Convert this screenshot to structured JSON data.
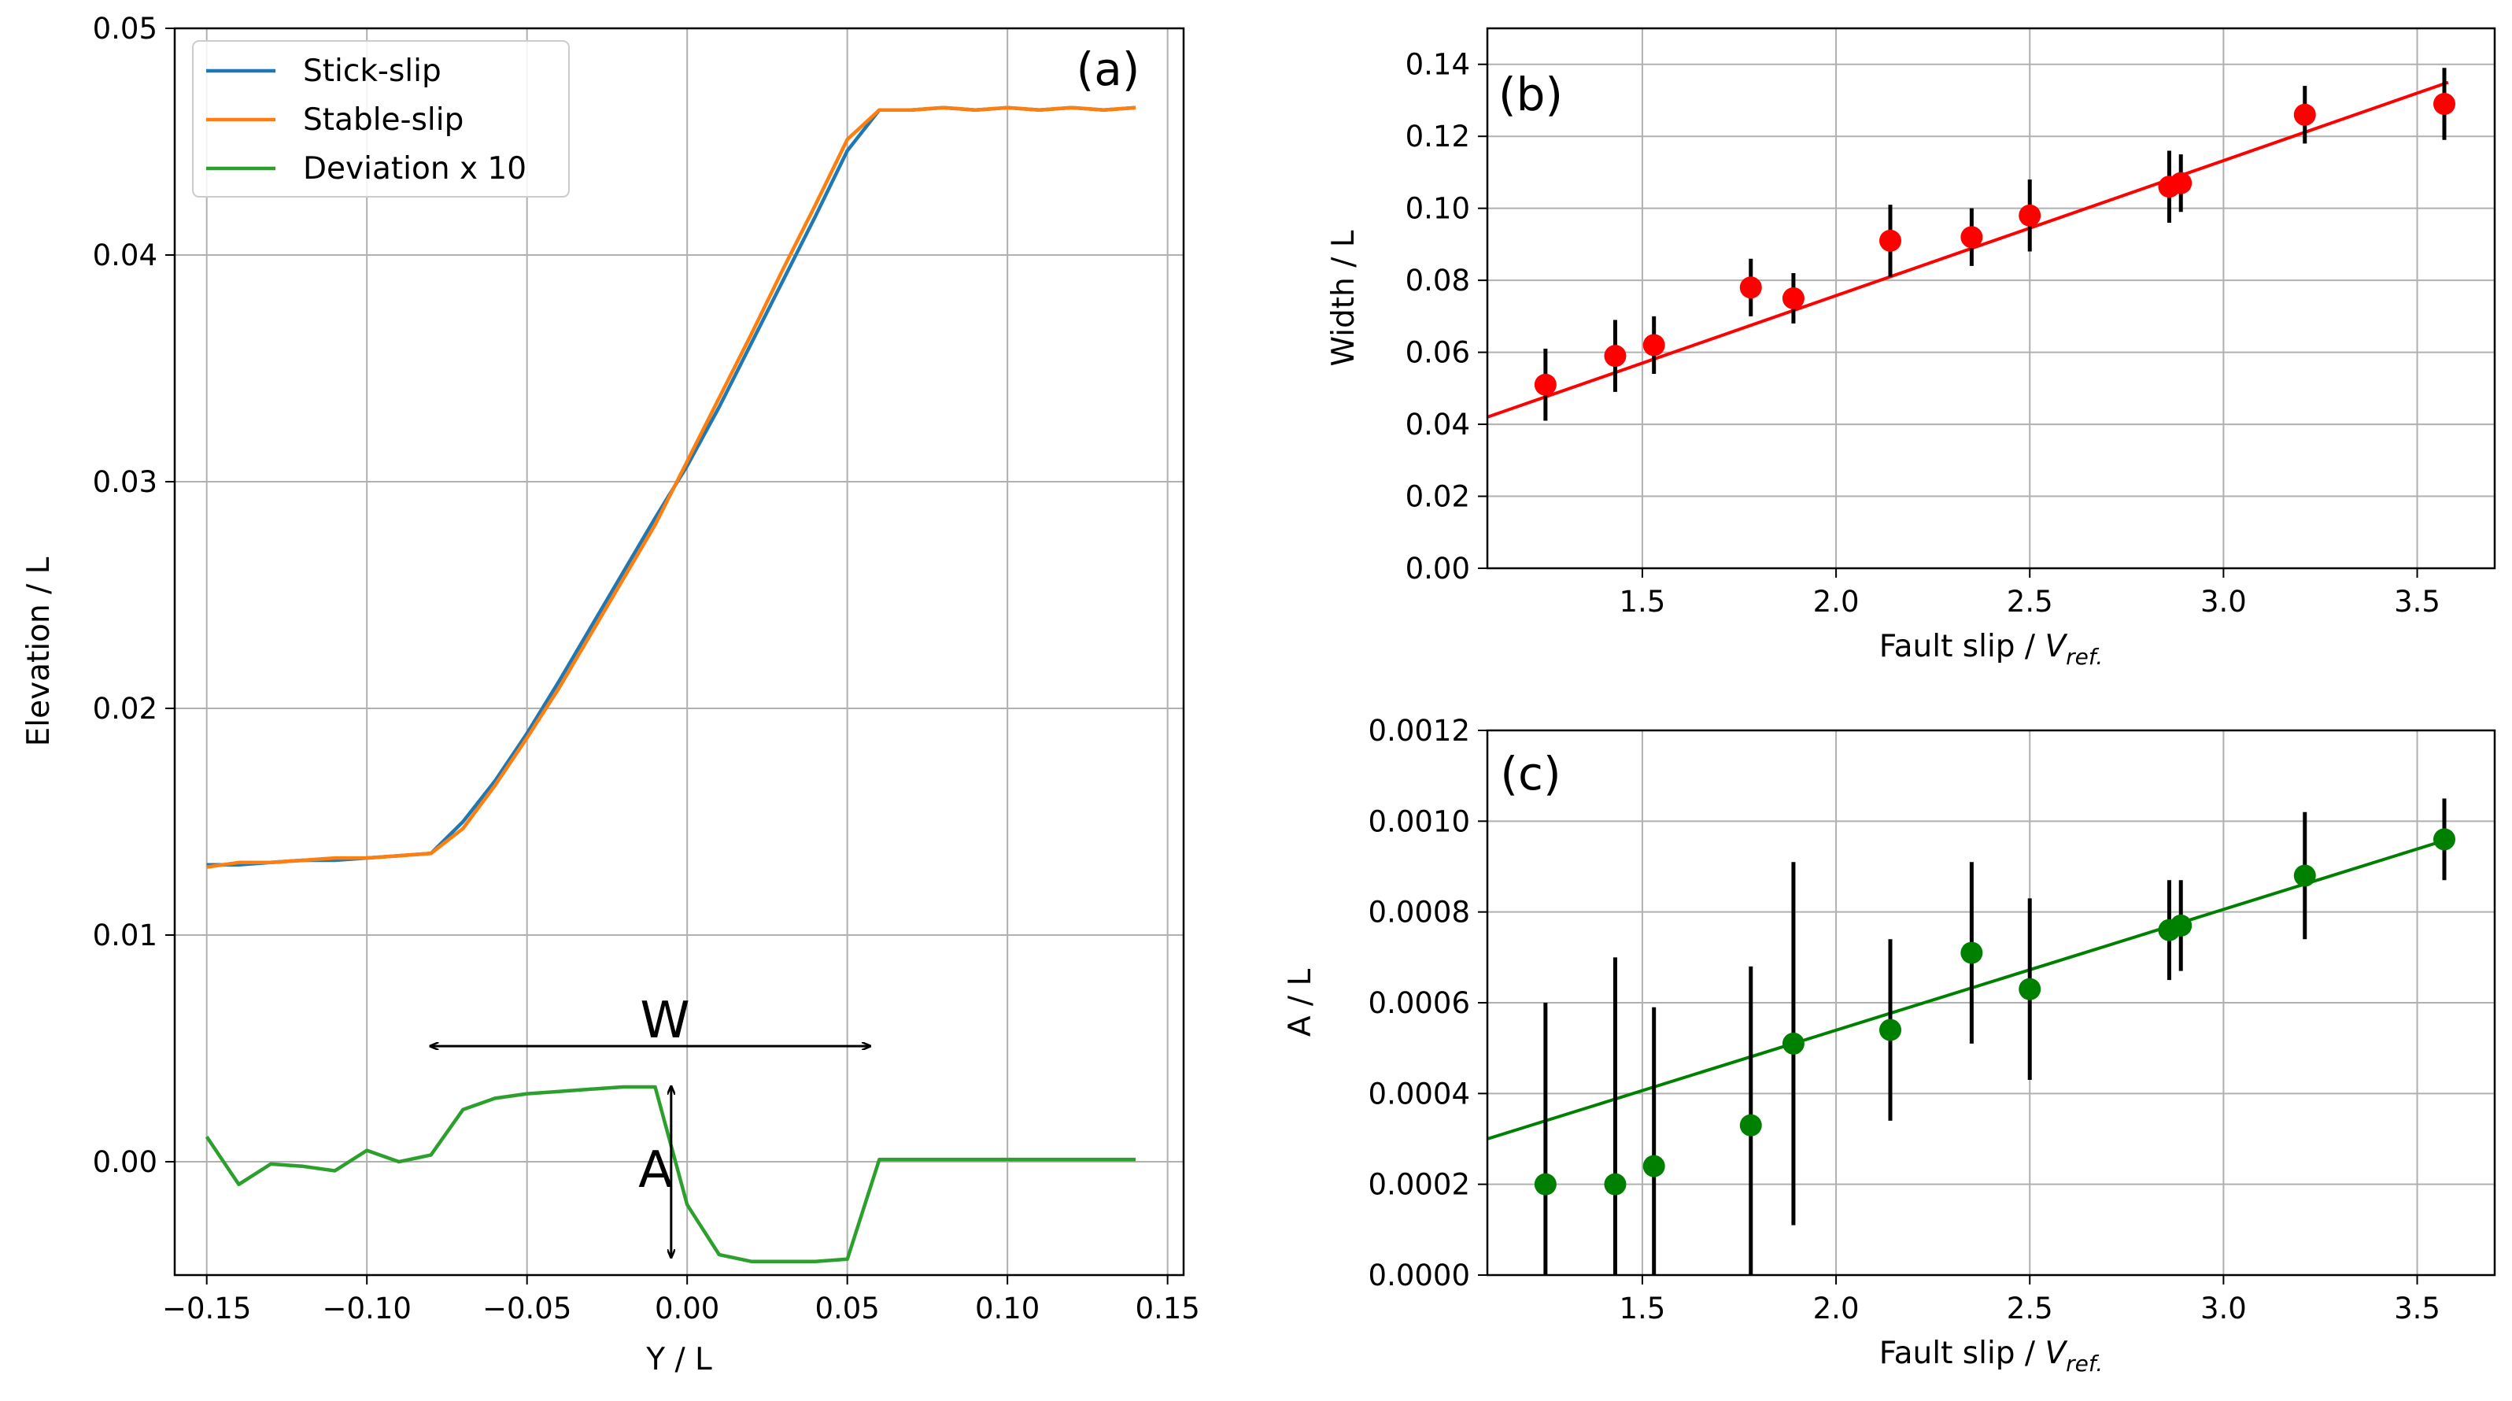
{
  "chart_data": [
    {
      "type": "line",
      "panel_label": "(a)",
      "xlabel": "Y / L",
      "ylabel": "Elevation / L",
      "xlim": [
        -0.16,
        0.155
      ],
      "ylim": [
        -0.005,
        0.05
      ],
      "xticks": [
        -0.15,
        -0.1,
        -0.05,
        0.0,
        0.05,
        0.1,
        0.15
      ],
      "xtick_labels": [
        "−0.15",
        "−0.10",
        "−0.05",
        "0.00",
        "0.05",
        "0.10",
        "0.15"
      ],
      "yticks": [
        0.0,
        0.01,
        0.02,
        0.03,
        0.04,
        0.05
      ],
      "ytick_labels": [
        "0.00",
        "0.01",
        "0.02",
        "0.03",
        "0.04",
        "0.05"
      ],
      "grid": true,
      "legend_position": "top-left",
      "series": [
        {
          "name": "Stick-slip",
          "color": "#1f77b4",
          "x": [
            -0.15,
            -0.14,
            -0.13,
            -0.12,
            -0.11,
            -0.1,
            -0.09,
            -0.08,
            -0.07,
            -0.06,
            -0.05,
            -0.04,
            -0.03,
            -0.02,
            -0.01,
            0.0,
            0.01,
            0.02,
            0.03,
            0.04,
            0.05,
            0.06,
            0.07,
            0.08,
            0.09,
            0.1,
            0.11,
            0.12,
            0.13,
            0.14
          ],
          "y": [
            0.0131,
            0.0131,
            0.0132,
            0.0133,
            0.0133,
            0.0134,
            0.0135,
            0.0136,
            0.015,
            0.0168,
            0.0189,
            0.0212,
            0.0236,
            0.026,
            0.0284,
            0.0307,
            0.0333,
            0.0361,
            0.0389,
            0.0417,
            0.0446,
            0.0464,
            0.0464,
            0.0465,
            0.0464,
            0.0465,
            0.0464,
            0.0465,
            0.0464,
            0.0465
          ]
        },
        {
          "name": "Stable-slip",
          "color": "#ff7f0e",
          "x": [
            -0.15,
            -0.14,
            -0.13,
            -0.12,
            -0.11,
            -0.1,
            -0.09,
            -0.08,
            -0.07,
            -0.06,
            -0.05,
            -0.04,
            -0.03,
            -0.02,
            -0.01,
            0.0,
            0.01,
            0.02,
            0.03,
            0.04,
            0.05,
            0.06,
            0.07,
            0.08,
            0.09,
            0.1,
            0.11,
            0.12,
            0.13,
            0.14
          ],
          "y": [
            0.013,
            0.0132,
            0.0132,
            0.0133,
            0.0134,
            0.0134,
            0.0135,
            0.0136,
            0.0147,
            0.0166,
            0.0187,
            0.0209,
            0.0233,
            0.0257,
            0.0281,
            0.0309,
            0.0337,
            0.0365,
            0.0394,
            0.0422,
            0.0451,
            0.0464,
            0.0464,
            0.0465,
            0.0464,
            0.0465,
            0.0464,
            0.0465,
            0.0464,
            0.0465
          ]
        },
        {
          "name": "Deviation x 10",
          "color": "#2ca02c",
          "x": [
            -0.15,
            -0.14,
            -0.13,
            -0.12,
            -0.11,
            -0.1,
            -0.09,
            -0.08,
            -0.07,
            -0.06,
            -0.05,
            -0.04,
            -0.03,
            -0.02,
            -0.01,
            0.0,
            0.01,
            0.02,
            0.03,
            0.04,
            0.05,
            0.06,
            0.07,
            0.08,
            0.09,
            0.1,
            0.11,
            0.12,
            0.13,
            0.14
          ],
          "y": [
            0.0011,
            -0.001,
            -0.0001,
            -0.0002,
            -0.0004,
            0.0005,
            0.0,
            0.0003,
            0.0023,
            0.0028,
            0.003,
            0.0031,
            0.0032,
            0.0033,
            0.0033,
            -0.0019,
            -0.0041,
            -0.0044,
            -0.0044,
            -0.0044,
            -0.0043,
            0.0001,
            0.0001,
            0.0001,
            0.0001,
            0.0001,
            0.0001,
            0.0001,
            0.0001,
            0.0001
          ]
        }
      ],
      "annotations": {
        "width_label": "W",
        "width_span": [
          -0.08,
          0.057
        ],
        "width_y": 0.0051,
        "amplitude_label": "A",
        "amplitude_x": -0.005,
        "amplitude_span": [
          -0.0042,
          0.0033
        ]
      }
    },
    {
      "type": "scatter",
      "panel_label": "(b)",
      "xlabel_prefix": "Fault slip / ",
      "xlabel_var": "V",
      "xlabel_sub": "ref.",
      "ylabel": "Width / L",
      "xlim": [
        1.1,
        3.7
      ],
      "ylim": [
        0.0,
        0.15
      ],
      "xticks": [
        1.5,
        2.0,
        2.5,
        3.0,
        3.5
      ],
      "xtick_labels": [
        "1.5",
        "2.0",
        "2.5",
        "3.0",
        "3.5"
      ],
      "yticks": [
        0.0,
        0.02,
        0.04,
        0.06,
        0.08,
        0.1,
        0.12,
        0.14
      ],
      "ytick_labels": [
        "0.00",
        "0.02",
        "0.04",
        "0.06",
        "0.08",
        "0.10",
        "0.12",
        "0.14"
      ],
      "grid": true,
      "point_color": "#ff0000",
      "x": [
        1.25,
        1.43,
        1.53,
        1.78,
        1.89,
        2.14,
        2.35,
        2.5,
        2.86,
        2.89,
        3.21,
        3.57
      ],
      "y": [
        0.051,
        0.059,
        0.062,
        0.078,
        0.075,
        0.091,
        0.092,
        0.098,
        0.106,
        0.107,
        0.126,
        0.129
      ],
      "err": [
        0.01,
        0.01,
        0.008,
        0.008,
        0.007,
        0.01,
        0.008,
        0.01,
        0.01,
        0.008,
        0.008,
        0.01
      ],
      "fit": {
        "x": [
          1.1,
          3.58
        ],
        "y": [
          0.042,
          0.135
        ],
        "color": "#ff0000"
      }
    },
    {
      "type": "scatter",
      "panel_label": "(c)",
      "xlabel_prefix": "Fault slip / ",
      "xlabel_var": "V",
      "xlabel_sub": "ref.",
      "ylabel": "A / L",
      "xlim": [
        1.1,
        3.7
      ],
      "ylim": [
        0.0,
        0.0012
      ],
      "xticks": [
        1.5,
        2.0,
        2.5,
        3.0,
        3.5
      ],
      "xtick_labels": [
        "1.5",
        "2.0",
        "2.5",
        "3.0",
        "3.5"
      ],
      "yticks": [
        0.0,
        0.0002,
        0.0004,
        0.0006,
        0.0008,
        0.001,
        0.0012
      ],
      "ytick_labels": [
        "0.0000",
        "0.0002",
        "0.0004",
        "0.0006",
        "0.0008",
        "0.0010",
        "0.0012"
      ],
      "grid": true,
      "point_color": "#008000",
      "x": [
        1.25,
        1.43,
        1.53,
        1.78,
        1.89,
        2.14,
        2.35,
        2.5,
        2.86,
        2.89,
        3.21,
        3.57
      ],
      "y": [
        0.0002,
        0.0002,
        0.00024,
        0.00033,
        0.00051,
        0.00054,
        0.00071,
        0.00063,
        0.00076,
        0.00077,
        0.00088,
        0.00096
      ],
      "err": [
        0.0004,
        0.0005,
        0.00035,
        0.00035,
        0.0004,
        0.0002,
        0.0002,
        0.0002,
        0.00011,
        0.0001,
        0.00014,
        9e-05
      ],
      "fit": {
        "x": [
          1.1,
          3.58
        ],
        "y": [
          0.0003,
          0.00096
        ],
        "color": "#008000"
      }
    }
  ]
}
